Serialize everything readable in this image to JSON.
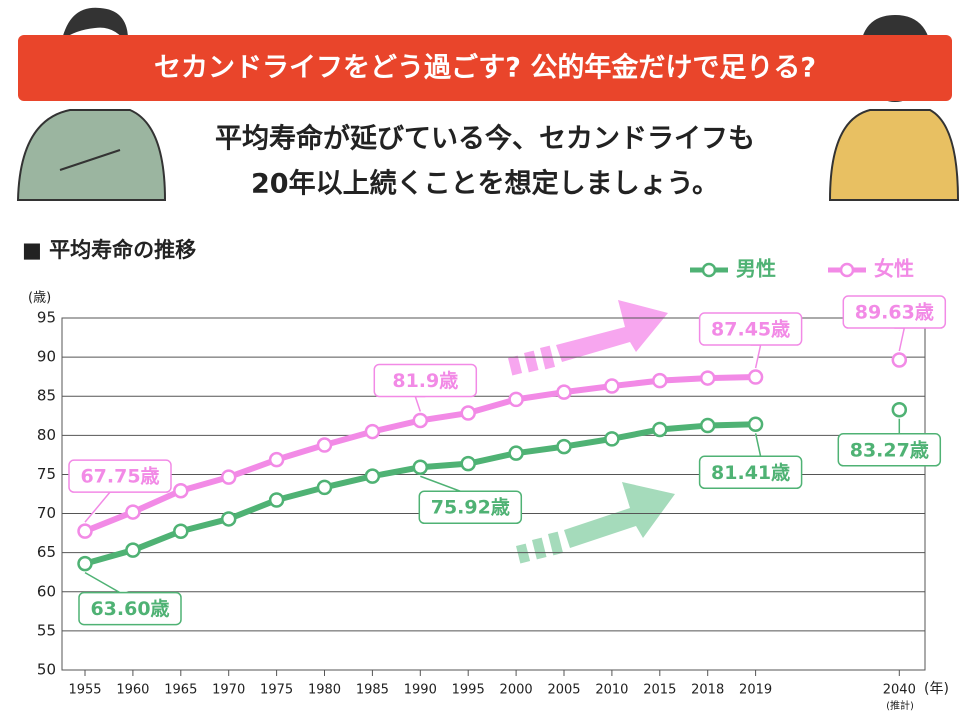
{
  "header": {
    "title": "セカンドライフをどう過ごす? 公的年金だけで足りる?",
    "subtitle_lines": [
      "平均寿命が延びている今、セカンドライフも",
      "20年以上続くことを想定しましょう。"
    ]
  },
  "chart_data": {
    "type": "line",
    "title": "■ 平均寿命の推移",
    "y_unit": "(歳)",
    "x_unit": "(年)",
    "annotations": [
      "(推計)"
    ],
    "categories": [
      "1955",
      "1960",
      "1965",
      "1970",
      "1975",
      "1980",
      "1985",
      "1990",
      "1995",
      "2000",
      "2005",
      "2010",
      "2015",
      "2018",
      "2019",
      null,
      null,
      "2040"
    ],
    "series": [
      {
        "name": "男性",
        "color": "#4fb274",
        "values": [
          63.6,
          65.32,
          67.74,
          69.31,
          71.73,
          73.35,
          74.78,
          75.92,
          76.38,
          77.72,
          78.56,
          79.55,
          80.75,
          81.25,
          81.41,
          null,
          null,
          83.27
        ],
        "value_labels": [
          "63.60歳",
          null,
          null,
          null,
          null,
          null,
          null,
          "75.92歳",
          null,
          null,
          null,
          null,
          null,
          null,
          "81.41歳",
          null,
          null,
          "83.27歳"
        ]
      },
      {
        "name": "女性",
        "color": "#f28ae6",
        "values": [
          67.75,
          70.19,
          72.92,
          74.66,
          76.89,
          78.76,
          80.48,
          81.9,
          82.85,
          84.6,
          85.52,
          86.3,
          86.99,
          87.32,
          87.45,
          null,
          null,
          89.63
        ],
        "value_labels": [
          "67.75歳",
          null,
          null,
          null,
          null,
          null,
          null,
          "81.9歳",
          null,
          null,
          null,
          null,
          null,
          null,
          "87.45歳",
          null,
          null,
          "89.63歳"
        ]
      }
    ],
    "ylim": [
      50,
      95
    ],
    "yticks": [
      50,
      55,
      60,
      65,
      70,
      75,
      80,
      85,
      90,
      95
    ],
    "grid": true
  }
}
